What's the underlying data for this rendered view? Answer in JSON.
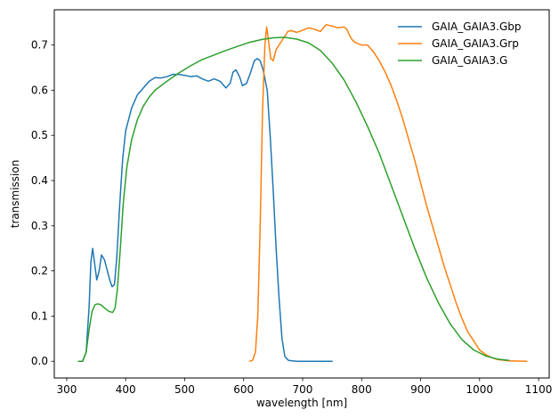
{
  "chart_data": {
    "type": "line",
    "title": "",
    "xlabel": "wavelength [nm]",
    "ylabel": "transmission",
    "xlim": [
      279,
      1118
    ],
    "ylim": [
      -0.037,
      0.778
    ],
    "xticks": [
      300,
      400,
      500,
      600,
      700,
      800,
      900,
      1000,
      1100
    ],
    "yticks": [
      0.0,
      0.1,
      0.2,
      0.3,
      0.4,
      0.5,
      0.6,
      0.7
    ],
    "ytick_labels": [
      "0.0",
      "0.1",
      "0.2",
      "0.3",
      "0.4",
      "0.5",
      "0.6",
      "0.7"
    ],
    "grid": false,
    "legend_position": "top-right",
    "series": [
      {
        "name": "GAIA_GAIA3.Gbp",
        "color": "#1f77b4",
        "points": [
          [
            320,
            0.0
          ],
          [
            327,
            0.0
          ],
          [
            333,
            0.02
          ],
          [
            338,
            0.12
          ],
          [
            341,
            0.22
          ],
          [
            344,
            0.25
          ],
          [
            347,
            0.22
          ],
          [
            351,
            0.18
          ],
          [
            355,
            0.2
          ],
          [
            359,
            0.235
          ],
          [
            364,
            0.225
          ],
          [
            369,
            0.2
          ],
          [
            373,
            0.18
          ],
          [
            377,
            0.165
          ],
          [
            381,
            0.17
          ],
          [
            385,
            0.23
          ],
          [
            390,
            0.35
          ],
          [
            395,
            0.45
          ],
          [
            400,
            0.51
          ],
          [
            410,
            0.56
          ],
          [
            420,
            0.59
          ],
          [
            430,
            0.605
          ],
          [
            440,
            0.62
          ],
          [
            450,
            0.628
          ],
          [
            460,
            0.627
          ],
          [
            470,
            0.63
          ],
          [
            480,
            0.635
          ],
          [
            490,
            0.635
          ],
          [
            500,
            0.633
          ],
          [
            510,
            0.63
          ],
          [
            520,
            0.632
          ],
          [
            530,
            0.625
          ],
          [
            540,
            0.62
          ],
          [
            550,
            0.625
          ],
          [
            560,
            0.62
          ],
          [
            570,
            0.605
          ],
          [
            577,
            0.615
          ],
          [
            582,
            0.64
          ],
          [
            587,
            0.645
          ],
          [
            593,
            0.63
          ],
          [
            598,
            0.61
          ],
          [
            605,
            0.615
          ],
          [
            612,
            0.64
          ],
          [
            618,
            0.665
          ],
          [
            623,
            0.67
          ],
          [
            628,
            0.665
          ],
          [
            633,
            0.645
          ],
          [
            640,
            0.6
          ],
          [
            645,
            0.5
          ],
          [
            650,
            0.38
          ],
          [
            655,
            0.25
          ],
          [
            660,
            0.14
          ],
          [
            665,
            0.05
          ],
          [
            670,
            0.01
          ],
          [
            676,
            0.002
          ],
          [
            690,
            0.0
          ],
          [
            720,
            0.0
          ],
          [
            750,
            0.0
          ]
        ]
      },
      {
        "name": "GAIA_GAIA3.Grp",
        "color": "#ff7f0e",
        "points": [
          [
            610,
            0.0
          ],
          [
            615,
            0.002
          ],
          [
            620,
            0.02
          ],
          [
            624,
            0.1
          ],
          [
            628,
            0.3
          ],
          [
            632,
            0.55
          ],
          [
            636,
            0.7
          ],
          [
            639,
            0.74
          ],
          [
            642,
            0.71
          ],
          [
            646,
            0.67
          ],
          [
            650,
            0.665
          ],
          [
            655,
            0.69
          ],
          [
            660,
            0.7
          ],
          [
            665,
            0.71
          ],
          [
            670,
            0.72
          ],
          [
            675,
            0.73
          ],
          [
            680,
            0.732
          ],
          [
            690,
            0.728
          ],
          [
            700,
            0.733
          ],
          [
            710,
            0.738
          ],
          [
            720,
            0.735
          ],
          [
            730,
            0.73
          ],
          [
            740,
            0.745
          ],
          [
            750,
            0.742
          ],
          [
            760,
            0.738
          ],
          [
            770,
            0.74
          ],
          [
            775,
            0.735
          ],
          [
            780,
            0.72
          ],
          [
            785,
            0.71
          ],
          [
            790,
            0.705
          ],
          [
            800,
            0.7
          ],
          [
            810,
            0.7
          ],
          [
            820,
            0.685
          ],
          [
            830,
            0.665
          ],
          [
            840,
            0.64
          ],
          [
            850,
            0.61
          ],
          [
            860,
            0.575
          ],
          [
            870,
            0.535
          ],
          [
            880,
            0.49
          ],
          [
            890,
            0.445
          ],
          [
            900,
            0.395
          ],
          [
            910,
            0.345
          ],
          [
            920,
            0.3
          ],
          [
            930,
            0.255
          ],
          [
            940,
            0.21
          ],
          [
            950,
            0.17
          ],
          [
            960,
            0.13
          ],
          [
            970,
            0.095
          ],
          [
            980,
            0.065
          ],
          [
            990,
            0.045
          ],
          [
            1000,
            0.025
          ],
          [
            1010,
            0.015
          ],
          [
            1020,
            0.008
          ],
          [
            1030,
            0.004
          ],
          [
            1050,
            0.001
          ],
          [
            1080,
            0.0
          ]
        ]
      },
      {
        "name": "GAIA_GAIA3.G",
        "color": "#2ca02c",
        "points": [
          [
            320,
            0.0
          ],
          [
            327,
            0.0
          ],
          [
            333,
            0.02
          ],
          [
            338,
            0.07
          ],
          [
            343,
            0.11
          ],
          [
            348,
            0.125
          ],
          [
            353,
            0.127
          ],
          [
            358,
            0.125
          ],
          [
            365,
            0.117
          ],
          [
            372,
            0.11
          ],
          [
            378,
            0.108
          ],
          [
            382,
            0.118
          ],
          [
            386,
            0.16
          ],
          [
            391,
            0.25
          ],
          [
            396,
            0.35
          ],
          [
            402,
            0.43
          ],
          [
            410,
            0.49
          ],
          [
            420,
            0.535
          ],
          [
            430,
            0.565
          ],
          [
            440,
            0.585
          ],
          [
            450,
            0.6
          ],
          [
            470,
            0.62
          ],
          [
            490,
            0.638
          ],
          [
            510,
            0.654
          ],
          [
            530,
            0.668
          ],
          [
            550,
            0.678
          ],
          [
            570,
            0.688
          ],
          [
            590,
            0.697
          ],
          [
            610,
            0.706
          ],
          [
            630,
            0.712
          ],
          [
            650,
            0.716
          ],
          [
            670,
            0.717
          ],
          [
            690,
            0.713
          ],
          [
            710,
            0.705
          ],
          [
            730,
            0.688
          ],
          [
            750,
            0.66
          ],
          [
            770,
            0.623
          ],
          [
            790,
            0.575
          ],
          [
            810,
            0.52
          ],
          [
            830,
            0.46
          ],
          [
            850,
            0.39
          ],
          [
            870,
            0.32
          ],
          [
            890,
            0.25
          ],
          [
            910,
            0.185
          ],
          [
            930,
            0.13
          ],
          [
            950,
            0.083
          ],
          [
            970,
            0.048
          ],
          [
            990,
            0.025
          ],
          [
            1010,
            0.012
          ],
          [
            1030,
            0.005
          ],
          [
            1050,
            0.002
          ]
        ]
      }
    ]
  }
}
